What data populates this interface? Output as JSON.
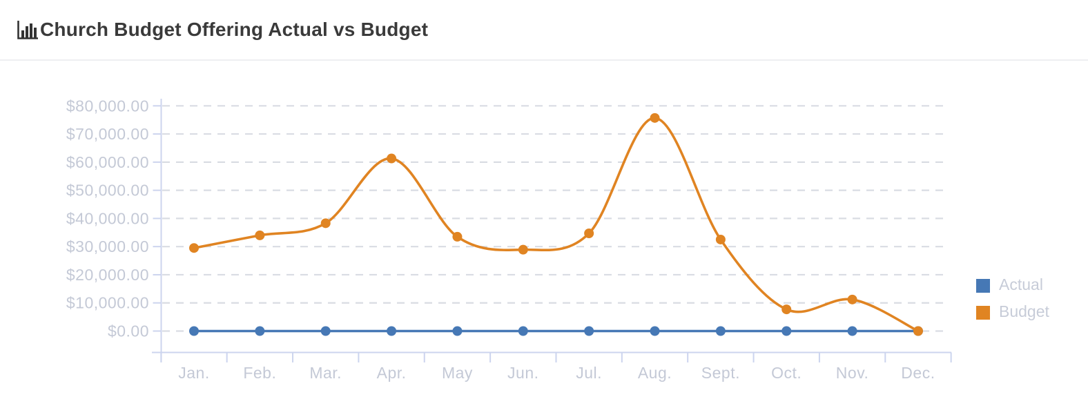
{
  "header": {
    "title": "Church Budget Offering Actual vs Budget",
    "icon": "bar-chart-icon"
  },
  "chart_data": {
    "type": "line",
    "title": "Church Budget Offering Actual vs Budget",
    "categories": [
      "Jan.",
      "Feb.",
      "Mar.",
      "Apr.",
      "May",
      "Jun.",
      "Jul.",
      "Aug.",
      "Sept.",
      "Oct.",
      "Nov.",
      "Dec."
    ],
    "series": [
      {
        "name": "Actual",
        "color": "#4678b5",
        "values": [
          0,
          0,
          0,
          0,
          0,
          0,
          0,
          0,
          0,
          0,
          0,
          0
        ]
      },
      {
        "name": "Budget",
        "color": "#e08422",
        "values": [
          29500,
          34000,
          38300,
          61300,
          33500,
          28900,
          34700,
          75700,
          32500,
          7700,
          11200,
          0
        ]
      }
    ],
    "xlabel": "",
    "ylabel": "",
    "ylim": [
      0,
      80000
    ],
    "ytick_step": 10000,
    "ytick_labels": [
      "$0.00",
      "$10,000.00",
      "$20,000.00",
      "$30,000.00",
      "$40,000.00",
      "$50,000.00",
      "$60,000.00",
      "$70,000.00",
      "$80,000.00"
    ],
    "grid": "horizontal-dashed",
    "legend_position": "right",
    "smooth": true
  },
  "colors": {
    "axis_line": "#ccd4ee",
    "grid_line": "#d9dce3",
    "tick_label": "#c4c9d6",
    "legend_text": "#c7ccd8",
    "title_text": "#3a3a3a",
    "divider": "#eeeff1",
    "icon": "#333333"
  }
}
